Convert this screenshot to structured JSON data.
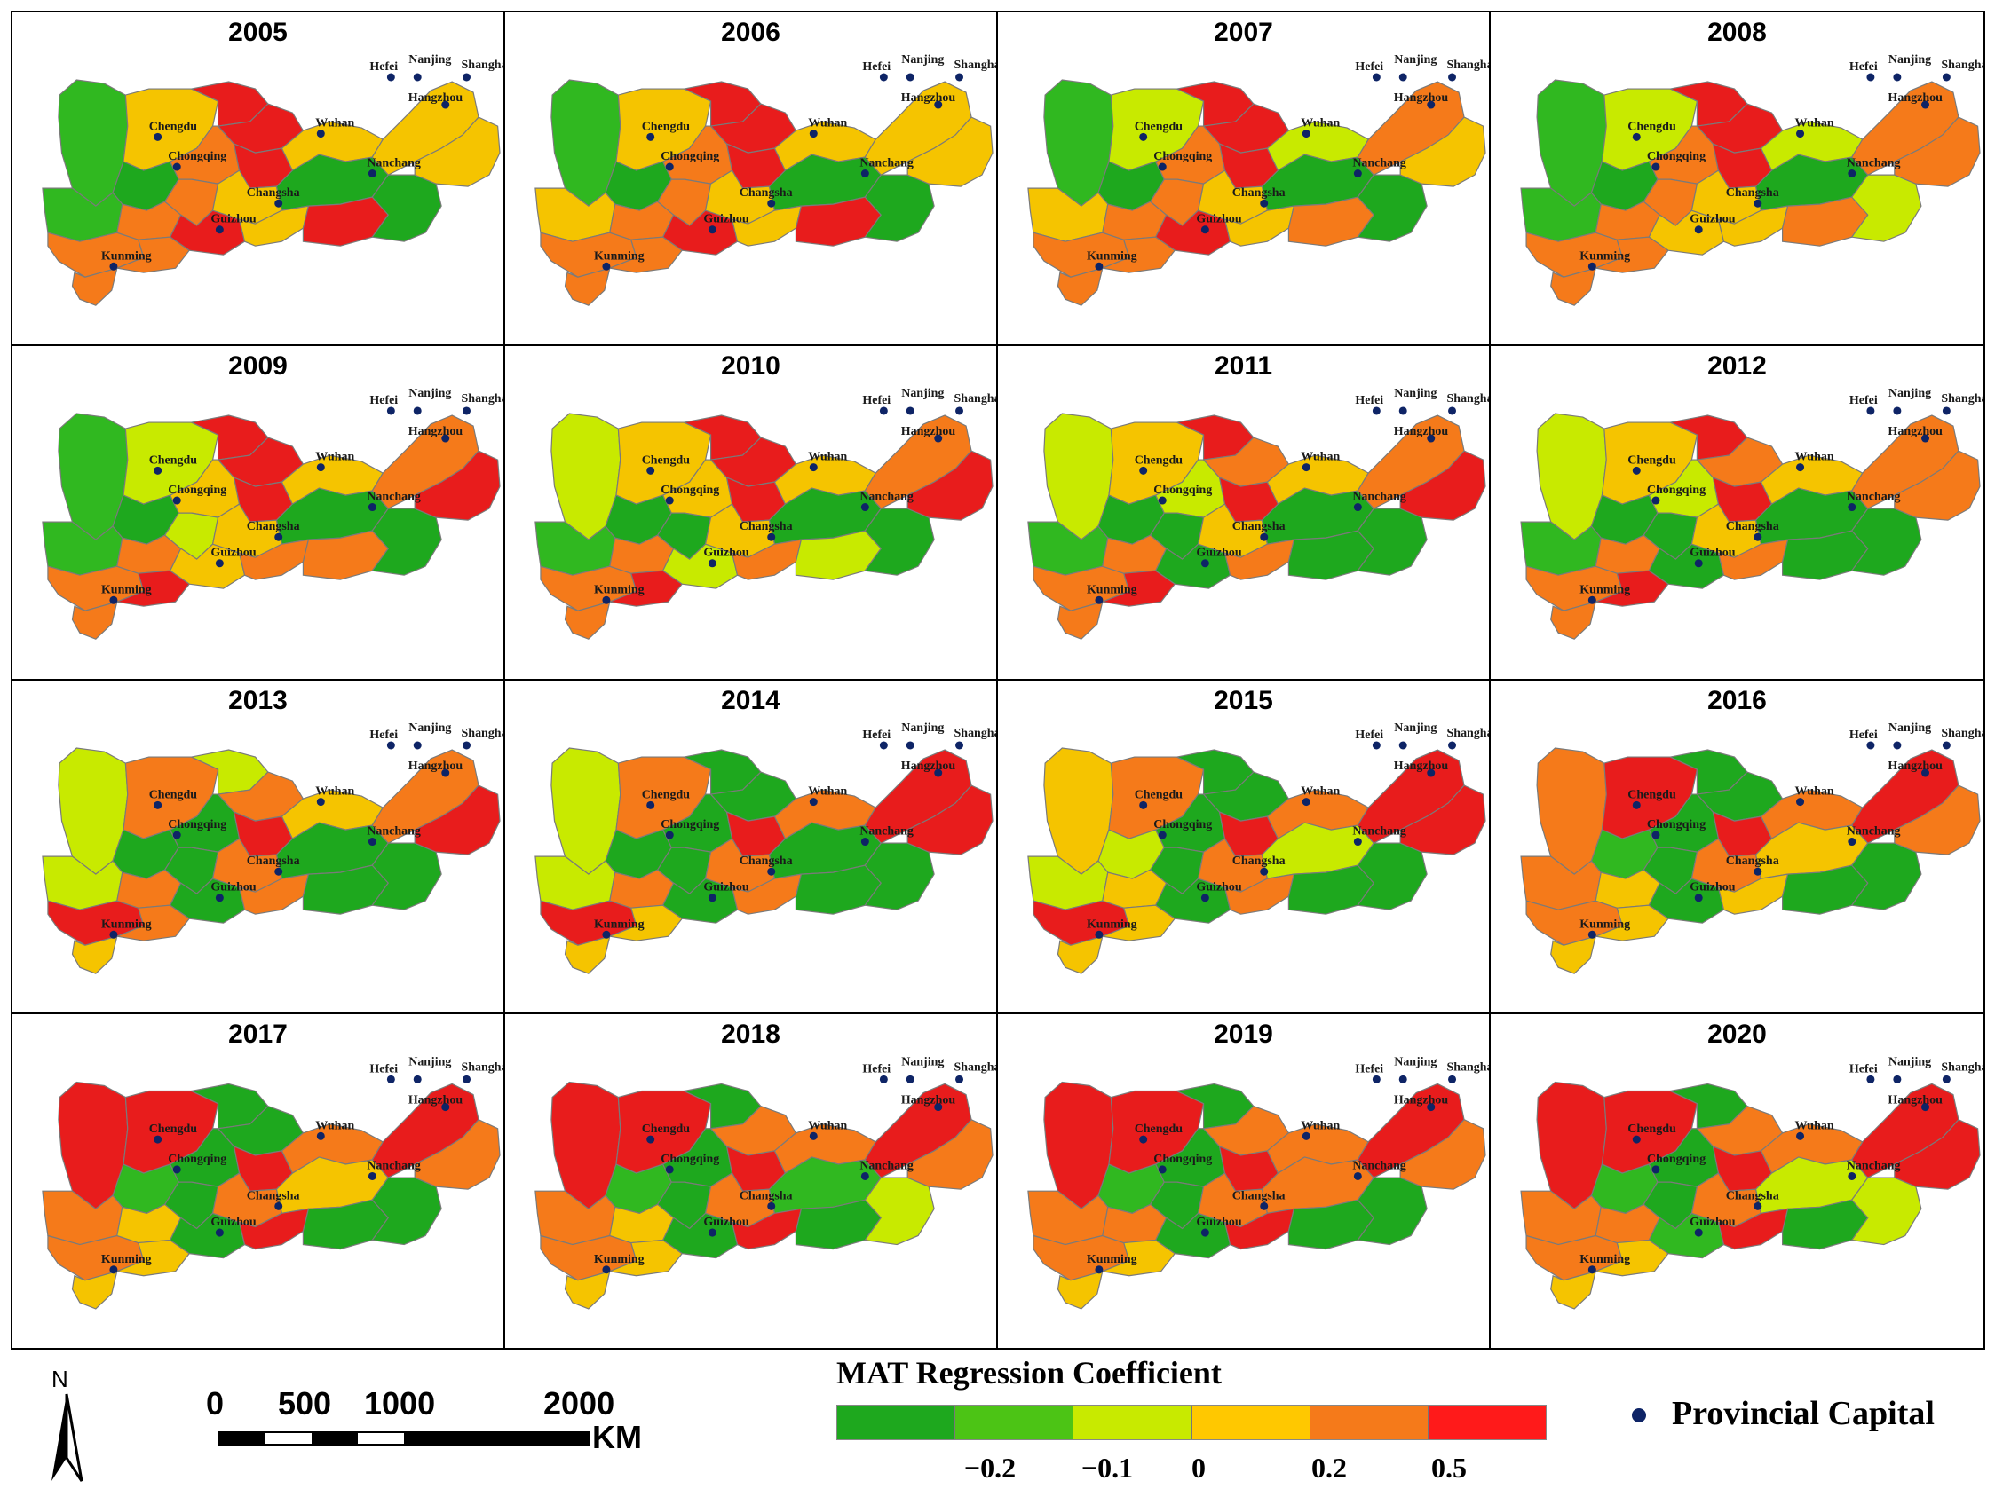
{
  "panels": [
    {
      "year": "2005",
      "colors": [
        "#30b820",
        "#f5c400",
        "#1ea81e",
        "#30b820",
        "#f57a1a",
        "#f57a1a",
        "#f57a1a",
        "#f57a1a",
        "#e81c1c",
        "#f57a1a",
        "#f57a1a",
        "#e81c1c",
        "#e81c1c",
        "#e81c1c",
        "#f5c400",
        "#f5c400",
        "#1ea81e",
        "#f5c400",
        "#e81c1c",
        "#1ea81e",
        "#f5c400",
        "#f5c400"
      ]
    },
    {
      "year": "2006",
      "colors": [
        "#30b820",
        "#f5c400",
        "#1ea81e",
        "#f5c400",
        "#f57a1a",
        "#f57a1a",
        "#f57a1a",
        "#f57a1a",
        "#e81c1c",
        "#f57a1a",
        "#f57a1a",
        "#e81c1c",
        "#e81c1c",
        "#e81c1c",
        "#f5c400",
        "#f5c400",
        "#1ea81e",
        "#f5c400",
        "#e81c1c",
        "#1ea81e",
        "#f5c400",
        "#f5c400"
      ]
    },
    {
      "year": "2007",
      "colors": [
        "#30b820",
        "#c8ea00",
        "#1ea81e",
        "#f5c400",
        "#f57a1a",
        "#f57a1a",
        "#f57a1a",
        "#f57a1a",
        "#e81c1c",
        "#f57a1a",
        "#f57a1a",
        "#e81c1c",
        "#e81c1c",
        "#e81c1c",
        "#f5c400",
        "#c8ea00",
        "#1ea81e",
        "#f5c400",
        "#f57a1a",
        "#1ea81e",
        "#f57a1a",
        "#f5c400"
      ]
    },
    {
      "year": "2008",
      "colors": [
        "#30b820",
        "#c8ea00",
        "#1ea81e",
        "#30b820",
        "#f57a1a",
        "#f57a1a",
        "#f57a1a",
        "#f57a1a",
        "#e81c1c",
        "#f57a1a",
        "#f57a1a",
        "#f5c400",
        "#e81c1c",
        "#e81c1c",
        "#f5c400",
        "#c8ea00",
        "#1ea81e",
        "#f5c400",
        "#f57a1a",
        "#c8ea00",
        "#f57a1a",
        "#f57a1a"
      ]
    },
    {
      "year": "2009",
      "colors": [
        "#30b820",
        "#c8ea00",
        "#1ea81e",
        "#30b820",
        "#f57a1a",
        "#f57a1a",
        "#e81c1c",
        "#f57a1a",
        "#e81c1c",
        "#f5c400",
        "#c8ea00",
        "#f5c400",
        "#e81c1c",
        "#e81c1c",
        "#f5c400",
        "#f5c400",
        "#1ea81e",
        "#f57a1a",
        "#f57a1a",
        "#1ea81e",
        "#f57a1a",
        "#e81c1c"
      ]
    },
    {
      "year": "2010",
      "colors": [
        "#c8ea00",
        "#f5c400",
        "#1ea81e",
        "#30b820",
        "#f57a1a",
        "#f57a1a",
        "#e81c1c",
        "#f57a1a",
        "#e81c1c",
        "#f5c400",
        "#1ea81e",
        "#c8ea00",
        "#e81c1c",
        "#e81c1c",
        "#f5c400",
        "#f5c400",
        "#1ea81e",
        "#f57a1a",
        "#c8ea00",
        "#1ea81e",
        "#f57a1a",
        "#e81c1c"
      ]
    },
    {
      "year": "2011",
      "colors": [
        "#c8ea00",
        "#f5c400",
        "#1ea81e",
        "#30b820",
        "#f57a1a",
        "#f57a1a",
        "#e81c1c",
        "#f57a1a",
        "#e81c1c",
        "#c8ea00",
        "#1ea81e",
        "#1ea81e",
        "#f57a1a",
        "#e81c1c",
        "#f5c400",
        "#f5c400",
        "#1ea81e",
        "#f57a1a",
        "#1ea81e",
        "#1ea81e",
        "#f57a1a",
        "#e81c1c"
      ]
    },
    {
      "year": "2012",
      "colors": [
        "#c8ea00",
        "#f5c400",
        "#1ea81e",
        "#30b820",
        "#f57a1a",
        "#f57a1a",
        "#e81c1c",
        "#f57a1a",
        "#e81c1c",
        "#c8ea00",
        "#1ea81e",
        "#1ea81e",
        "#f57a1a",
        "#e81c1c",
        "#f5c400",
        "#f5c400",
        "#1ea81e",
        "#f57a1a",
        "#1ea81e",
        "#1ea81e",
        "#f57a1a",
        "#f57a1a"
      ]
    },
    {
      "year": "2013",
      "colors": [
        "#c8ea00",
        "#f57a1a",
        "#1ea81e",
        "#c8ea00",
        "#e81c1c",
        "#f57a1a",
        "#f57a1a",
        "#f5c400",
        "#c8ea00",
        "#1ea81e",
        "#1ea81e",
        "#1ea81e",
        "#f57a1a",
        "#e81c1c",
        "#f57a1a",
        "#f5c400",
        "#1ea81e",
        "#f57a1a",
        "#1ea81e",
        "#1ea81e",
        "#f57a1a",
        "#e81c1c"
      ]
    },
    {
      "year": "2014",
      "colors": [
        "#c8ea00",
        "#f57a1a",
        "#1ea81e",
        "#c8ea00",
        "#e81c1c",
        "#f57a1a",
        "#f5c400",
        "#f5c400",
        "#1ea81e",
        "#1ea81e",
        "#1ea81e",
        "#1ea81e",
        "#1ea81e",
        "#e81c1c",
        "#f57a1a",
        "#f57a1a",
        "#1ea81e",
        "#f57a1a",
        "#1ea81e",
        "#1ea81e",
        "#e81c1c",
        "#e81c1c"
      ]
    },
    {
      "year": "2015",
      "colors": [
        "#f5c400",
        "#f57a1a",
        "#c8ea00",
        "#c8ea00",
        "#e81c1c",
        "#f5c400",
        "#f5c400",
        "#f5c400",
        "#1ea81e",
        "#1ea81e",
        "#1ea81e",
        "#1ea81e",
        "#1ea81e",
        "#e81c1c",
        "#f57a1a",
        "#f57a1a",
        "#c8ea00",
        "#f57a1a",
        "#1ea81e",
        "#1ea81e",
        "#e81c1c",
        "#e81c1c"
      ]
    },
    {
      "year": "2016",
      "colors": [
        "#f57a1a",
        "#e81c1c",
        "#30b820",
        "#f57a1a",
        "#f57a1a",
        "#f5c400",
        "#f5c400",
        "#f5c400",
        "#1ea81e",
        "#1ea81e",
        "#1ea81e",
        "#1ea81e",
        "#1ea81e",
        "#e81c1c",
        "#f57a1a",
        "#f57a1a",
        "#f5c400",
        "#f5c400",
        "#1ea81e",
        "#1ea81e",
        "#e81c1c",
        "#f57a1a"
      ]
    },
    {
      "year": "2017",
      "colors": [
        "#e81c1c",
        "#e81c1c",
        "#30b820",
        "#f57a1a",
        "#f57a1a",
        "#f5c400",
        "#f5c400",
        "#f5c400",
        "#1ea81e",
        "#1ea81e",
        "#1ea81e",
        "#1ea81e",
        "#1ea81e",
        "#e81c1c",
        "#f57a1a",
        "#f57a1a",
        "#f5c400",
        "#e81c1c",
        "#1ea81e",
        "#1ea81e",
        "#e81c1c",
        "#f57a1a"
      ]
    },
    {
      "year": "2018",
      "colors": [
        "#e81c1c",
        "#e81c1c",
        "#30b820",
        "#f57a1a",
        "#f57a1a",
        "#f5c400",
        "#f5c400",
        "#f5c400",
        "#1ea81e",
        "#1ea81e",
        "#1ea81e",
        "#1ea81e",
        "#f57a1a",
        "#e81c1c",
        "#f57a1a",
        "#f57a1a",
        "#30b820",
        "#e81c1c",
        "#1ea81e",
        "#c8ea00",
        "#e81c1c",
        "#f57a1a"
      ]
    },
    {
      "year": "2019",
      "colors": [
        "#e81c1c",
        "#e81c1c",
        "#30b820",
        "#f57a1a",
        "#f57a1a",
        "#f57a1a",
        "#f5c400",
        "#f5c400",
        "#1ea81e",
        "#1ea81e",
        "#1ea81e",
        "#1ea81e",
        "#f57a1a",
        "#e81c1c",
        "#f57a1a",
        "#f57a1a",
        "#f57a1a",
        "#e81c1c",
        "#1ea81e",
        "#1ea81e",
        "#e81c1c",
        "#f57a1a"
      ]
    },
    {
      "year": "2020",
      "colors": [
        "#e81c1c",
        "#e81c1c",
        "#30b820",
        "#f57a1a",
        "#f57a1a",
        "#f57a1a",
        "#f5c400",
        "#f5c400",
        "#1ea81e",
        "#1ea81e",
        "#1ea81e",
        "#30b820",
        "#f57a1a",
        "#e81c1c",
        "#f57a1a",
        "#f57a1a",
        "#c8ea00",
        "#e81c1c",
        "#1ea81e",
        "#c8ea00",
        "#e81c1c",
        "#e81c1c"
      ]
    }
  ],
  "cities": [
    "Chengdu",
    "Chongqing",
    "Guizhou",
    "Kunming",
    "Wuhan",
    "Changsha",
    "Nanchang",
    "Hefei",
    "Nanjing",
    "Shanghai",
    "Hangzhou"
  ],
  "legend": {
    "title": "MAT Regression Coefficient",
    "colors": [
      "#1ea81e",
      "#4cc415",
      "#c8ea00",
      "#ffc800",
      "#f57a1a",
      "#ff1a1a"
    ],
    "ticks": [
      "−0.2",
      "−0.1",
      "0",
      "0.2",
      "0.5"
    ]
  },
  "scale": {
    "labels": [
      "0",
      "500",
      "1000",
      "2000"
    ],
    "unit": "KM"
  },
  "north_label": "N",
  "capital_legend": {
    "label": "Provincial Capital",
    "dot_color": "#0e2466"
  },
  "theme": {
    "border_color": "#7a7a7a",
    "capital_color": "#0e2466"
  }
}
